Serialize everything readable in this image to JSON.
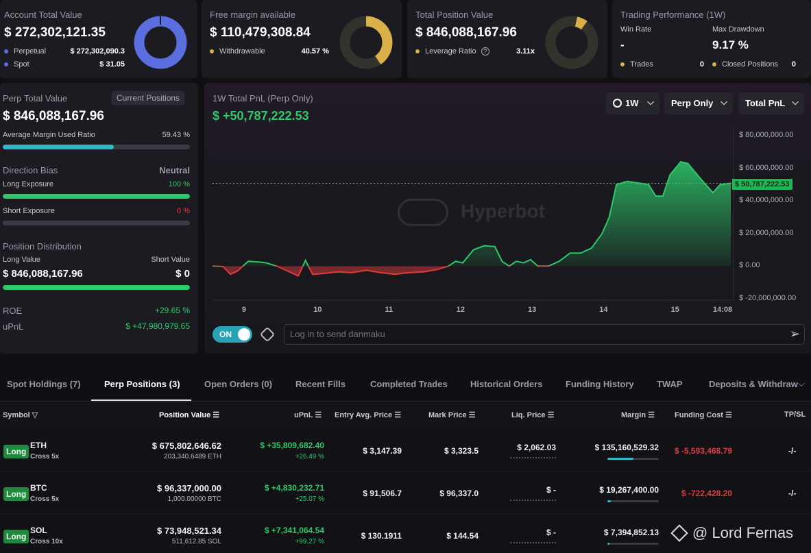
{
  "account": {
    "title": "Account Total Value",
    "value": "$ 272,302,121.35",
    "perp_label": "Perpetual",
    "perp_value": "$ 272,302,090.3",
    "spot_label": "Spot",
    "spot_value": "$ 31.05",
    "donut_color": "#5b6ee0"
  },
  "margin": {
    "title": "Free margin available",
    "value": "$ 110,479,308.84",
    "withdraw_label": "Withdrawable",
    "withdraw_value": "40.57 %",
    "donut_color": "#d9b04a"
  },
  "position": {
    "title": "Total Position Value",
    "value": "$ 846,088,167.96",
    "lev_label": "Leverage Ratio",
    "lev_value": "3.11x",
    "help_icon": "question-circle-icon"
  },
  "performance": {
    "title": "Trading Performance (1W)",
    "win_rate_label": "Win Rate",
    "win_rate_value": "-",
    "drawdown_label": "Max Drawdown",
    "drawdown_value": "9.17 %",
    "trades_label": "Trades",
    "trades_value": "0",
    "closed_label": "Closed Positions",
    "closed_value": "0"
  },
  "perp_panel": {
    "title": "Perp Total Value",
    "button": "Current Positions",
    "value": "$ 846,088,167.96",
    "margin_label": "Average Margin Used Ratio",
    "margin_value": "59.43 %",
    "margin_fraction": 0.5943,
    "bias_label": "Direction Bias",
    "bias_value": "Neutral",
    "long_label": "Long Exposure",
    "long_value": "100 %",
    "long_fraction": 1.0,
    "short_label": "Short Exposure",
    "short_value": "0 %",
    "short_fraction": 0.0,
    "dist_label": "Position Distribution",
    "long_val_label": "Long Value",
    "short_val_label": "Short Value",
    "long_val": "$ 846,088,167.96",
    "short_val": "$ 0",
    "dist_fraction": 1.0,
    "roe_label": "ROE",
    "roe_value": "+29.65 %",
    "upnl_label": "uPnL",
    "upnl_value": "$ +47,980,979.65"
  },
  "chart_panel": {
    "title": "1W Total PnL (Perp Only)",
    "value": "$ +50,787,222.53",
    "dropdown_time": "1W",
    "dropdown_scope": "Perp Only",
    "dropdown_metric": "Total PnL",
    "watermark": "Hyperbot",
    "toggle_label": "ON",
    "danmaku_placeholder": "Log in to send danmaku"
  },
  "chart_data": {
    "type": "area",
    "ylim": [
      -20000000,
      80000000
    ],
    "y_ticks": [
      "$ 80,000,000.00",
      "$ 60,000,000.00",
      "$ 40,000,000.00",
      "$ 20,000,000.00",
      "$ 0.00",
      "$ -20,000,000.00"
    ],
    "y_tick_values": [
      80000000,
      60000000,
      40000000,
      20000000,
      0,
      -20000000
    ],
    "x_ticks": [
      "9",
      "10",
      "11",
      "12",
      "13",
      "14",
      "15",
      "14:08"
    ],
    "x_tick_values": [
      9,
      10,
      11,
      12,
      13,
      14,
      15,
      15.8
    ],
    "xlim": [
      8.55,
      15.8
    ],
    "current_value_label": "$ 50,787,222.53",
    "current_value": 50787222,
    "points": [
      [
        8.55,
        0
      ],
      [
        8.7,
        -300000
      ],
      [
        8.8,
        -5000000
      ],
      [
        8.9,
        -3000000
      ],
      [
        9.05,
        3000000
      ],
      [
        9.2,
        2500000
      ],
      [
        9.3,
        2000000
      ],
      [
        9.45,
        0
      ],
      [
        9.6,
        -3000000
      ],
      [
        9.75,
        -6000000
      ],
      [
        9.85,
        3500000
      ],
      [
        9.95,
        -5000000
      ],
      [
        10.1,
        -4500000
      ],
      [
        10.3,
        -3500000
      ],
      [
        10.5,
        -4000000
      ],
      [
        10.7,
        -2500000
      ],
      [
        10.9,
        -4000000
      ],
      [
        11.1,
        -5000000
      ],
      [
        11.3,
        -4000000
      ],
      [
        11.5,
        -3500000
      ],
      [
        11.7,
        -2000000
      ],
      [
        11.85,
        0
      ],
      [
        11.95,
        3000000
      ],
      [
        12.05,
        2000000
      ],
      [
        12.2,
        10000000
      ],
      [
        12.35,
        12500000
      ],
      [
        12.5,
        12000000
      ],
      [
        12.6,
        3000000
      ],
      [
        12.7,
        0
      ],
      [
        12.8,
        3000000
      ],
      [
        12.9,
        2000000
      ],
      [
        13.0,
        4000000
      ],
      [
        13.1,
        0
      ],
      [
        13.25,
        0
      ],
      [
        13.4,
        3000000
      ],
      [
        13.55,
        8000000
      ],
      [
        13.7,
        8000000
      ],
      [
        13.85,
        11000000
      ],
      [
        14.0,
        20000000
      ],
      [
        14.1,
        30000000
      ],
      [
        14.2,
        50000000
      ],
      [
        14.35,
        52000000
      ],
      [
        14.5,
        51000000
      ],
      [
        14.65,
        50000000
      ],
      [
        14.75,
        43000000
      ],
      [
        14.85,
        43000000
      ],
      [
        14.95,
        56000000
      ],
      [
        15.1,
        64000000
      ],
      [
        15.2,
        63000000
      ],
      [
        15.35,
        55000000
      ],
      [
        15.45,
        50000000
      ],
      [
        15.55,
        45000000
      ],
      [
        15.65,
        50000000
      ],
      [
        15.8,
        50787222
      ]
    ]
  },
  "tabs": [
    {
      "label": "Spot Holdings (7)"
    },
    {
      "label": "Perp Positions (3)"
    },
    {
      "label": "Open Orders (0)"
    },
    {
      "label": "Recent Fills"
    },
    {
      "label": "Completed Trades"
    },
    {
      "label": "Historical Orders"
    },
    {
      "label": "Funding History"
    },
    {
      "label": "TWAP"
    },
    {
      "label": "Deposits & Withdraw"
    }
  ],
  "table": {
    "headers": {
      "symbol": "Symbol",
      "pos_value": "Position Value",
      "upnl": "uPnL",
      "entry": "Entry Avg. Price",
      "mark": "Mark Price",
      "liq": "Liq. Price",
      "margin": "Margin",
      "funding": "Funding Cost",
      "tpsl": "TP/SL"
    },
    "rows": [
      {
        "side": "Long",
        "symbol": "ETH",
        "mode": "Cross 5x",
        "pos_value": "$ 675,802,646.62",
        "pos_size": "203,340.6489 ETH",
        "upnl": "$ +35,809,682.40",
        "upnl_pct": "+26.49 %",
        "entry": "$ 3,147.39",
        "mark": "$ 3,323.5",
        "liq": "$ 2,062.03",
        "margin": "$ 135,160,529.32",
        "margin_fraction": 0.5,
        "funding": "$ -5,593,468.79",
        "tpsl": "-/-"
      },
      {
        "side": "Long",
        "symbol": "BTC",
        "mode": "Cross 5x",
        "pos_value": "$ 96,337,000.00",
        "pos_size": "1,000.00000 BTC",
        "upnl": "$ +4,830,232.71",
        "upnl_pct": "+25.07 %",
        "entry": "$ 91,506.7",
        "mark": "$ 96,337.0",
        "liq": "$ -",
        "margin": "$ 19,267,400.00",
        "margin_fraction": 0.07,
        "funding": "$ -722,428.20",
        "tpsl": "-/-"
      },
      {
        "side": "Long",
        "symbol": "SOL",
        "mode": "Cross 10x",
        "pos_value": "$ 73,948,521.34",
        "pos_size": "511,612.85 SOL",
        "upnl": "$ +7,341,064.54",
        "upnl_pct": "+99.27 %",
        "entry": "$ 130.1911",
        "mark": "$ 144.54",
        "liq": "$ -",
        "margin": "$ 7,394,852.13",
        "margin_fraction": 0.04,
        "funding": "",
        "tpsl": ""
      }
    ]
  },
  "overlay_watermark": "@ Lord Fernas",
  "colors": {
    "green": "#2ec96a",
    "red": "#e03b3b",
    "accent_teal": "#27a3b5",
    "bg": "#101014",
    "card": "#1c1b22"
  }
}
